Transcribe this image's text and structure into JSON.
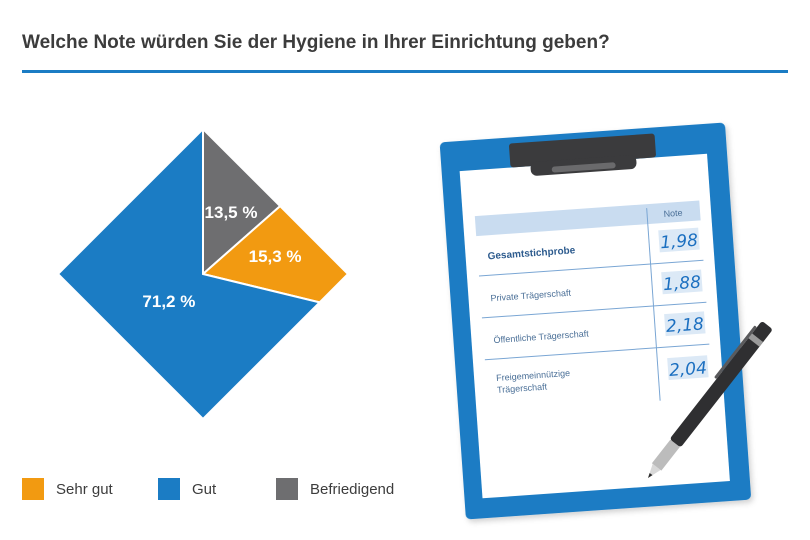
{
  "title": "Welche Note würden Sie der Hygiene in Ihrer Einrichtung geben?",
  "chart_data": {
    "type": "pie",
    "shape": "diamond",
    "slices": [
      {
        "label": "Sehr gut",
        "value": 15.3,
        "display": "15,3 %",
        "color": "#f29a11"
      },
      {
        "label": "Gut",
        "value": 71.2,
        "display": "71,2 %",
        "color": "#1b7cc4"
      },
      {
        "label": "Befriedigend",
        "value": 13.5,
        "display": "13,5 %",
        "color": "#6e6e70"
      }
    ],
    "legend_placement": "bottom-left"
  },
  "table": {
    "header": "Note",
    "rows": [
      {
        "label": "Gesamtstichprobe",
        "value": "1,98",
        "bold": true
      },
      {
        "label": "Private Trägerschaft",
        "value": "1,88",
        "bold": false
      },
      {
        "label": "Öffentliche Trägerschaft",
        "value": "2,18",
        "bold": false
      },
      {
        "label_lines": [
          "Freigemeinnützige",
          "Trägerschaft"
        ],
        "value": "2,04",
        "bold": false
      }
    ]
  },
  "colors": {
    "accent": "#1b7cc4",
    "text": "#3c3c3c",
    "table_header_bg": "#c9dcf0",
    "clipboard": "#1b7cc4"
  },
  "icons": {
    "clipboard": "clipboard-icon",
    "pen": "pen-icon"
  }
}
